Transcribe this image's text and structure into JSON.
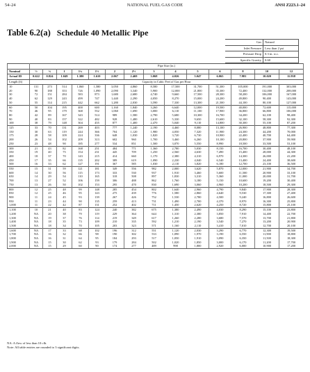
{
  "header": {
    "left": "54–24",
    "center": "NATIONAL FUEL GAS CODE",
    "right": "ANSI Z223.1–24"
  },
  "table": {
    "number": "Table 6.2(a)",
    "title": "Schedule 40 Metallic Pipe"
  },
  "conditions": [
    {
      "label": "Gas",
      "value": "Natural"
    },
    {
      "label": "Inlet Pressure",
      "value": "Less than 2 psi"
    },
    {
      "label": "Pressure Drop",
      "value": "0.3 in. w.c."
    },
    {
      "label": "Specific Gravity",
      "value": "0.60"
    }
  ],
  "pipe_size_label": "Pipe Size (in.)",
  "nominal_label": "Nominal",
  "nominal": [
    "½",
    "¾",
    "1",
    "1¼",
    "1½",
    "2",
    "2½",
    "3",
    "4",
    "5",
    "6",
    "8",
    "10",
    "12"
  ],
  "actual_id_label": "Actual ID",
  "actual_id": [
    "0.622",
    "0.824",
    "1.049",
    "1.380",
    "1.610",
    "2.067",
    "2.469",
    "3.068",
    "4.026",
    "5.047",
    "6.065",
    "7.981",
    "10.020",
    "11.938"
  ],
  "length_label": "Length (ft)",
  "capacity_label": "Capacity in Cubic Feet of Gas per Hour",
  "rows": [
    {
      "len": "10",
      "v": [
        "131",
        "273",
        "514",
        "1,060",
        "1,580",
        "3,050",
        "4,860",
        "8,580",
        "17,500",
        "31,700",
        "51,300",
        "105,000",
        "191,000",
        "303,000"
      ]
    },
    {
      "len": "20",
      "v": [
        "90",
        "188",
        "353",
        "726",
        "1,090",
        "2,090",
        "3,340",
        "5,900",
        "12,000",
        "21,800",
        "35,300",
        "72,400",
        "132,000",
        "208,000"
      ]
    },
    {
      "len": "30",
      "v": [
        "72",
        "151",
        "284",
        "583",
        "873",
        "1,680",
        "2,680",
        "4,740",
        "9,660",
        "17,500",
        "28,300",
        "58,200",
        "106,000",
        "167,000"
      ]
    },
    {
      "len": "40",
      "v": [
        "62",
        "129",
        "243",
        "499",
        "747",
        "1,440",
        "2,290",
        "4,050",
        "8,270",
        "15,000",
        "24,200",
        "49,800",
        "90,400",
        "143,000"
      ]
    },
    {
      "len": "50",
      "v": [
        "55",
        "114",
        "215",
        "442",
        "662",
        "1,280",
        "2,030",
        "3,590",
        "7,330",
        "13,300",
        "21,500",
        "44,100",
        "80,100",
        "127,000"
      ]
    },
    {
      "len": "60",
      "v": [
        "50",
        "104",
        "195",
        "400",
        "600",
        "1,160",
        "1,840",
        "3,260",
        "6,640",
        "12,000",
        "19,500",
        "40,000",
        "72,600",
        "115,000"
      ]
    },
    {
      "len": "70",
      "v": [
        "46",
        "95",
        "179",
        "368",
        "552",
        "1,060",
        "1,690",
        "3,000",
        "6,110",
        "11,100",
        "17,900",
        "36,800",
        "66,800",
        "106,000"
      ]
    },
    {
      "len": "80",
      "v": [
        "42",
        "89",
        "167",
        "343",
        "514",
        "989",
        "1,580",
        "2,790",
        "5,680",
        "10,300",
        "16,700",
        "34,200",
        "62,100",
        "98,400"
      ]
    },
    {
      "len": "90",
      "v": [
        "40",
        "83",
        "157",
        "322",
        "482",
        "928",
        "1,480",
        "2,610",
        "5,330",
        "9,650",
        "15,600",
        "32,100",
        "58,300",
        "92,300"
      ]
    },
    {
      "len": "100",
      "v": [
        "38",
        "79",
        "148",
        "304",
        "455",
        "877",
        "1,400",
        "2,470",
        "5,040",
        "9,110",
        "14,800",
        "30,300",
        "55,100",
        "87,200"
      ]
    },
    {
      "len": "125",
      "v": [
        "33",
        "70",
        "131",
        "269",
        "403",
        "777",
        "1,240",
        "2,190",
        "4,460",
        "8,080",
        "13,100",
        "26,900",
        "48,800",
        "77,300"
      ]
    },
    {
      "len": "150",
      "v": [
        "30",
        "63",
        "119",
        "244",
        "366",
        "704",
        "1,120",
        "1,980",
        "4,050",
        "7,320",
        "11,900",
        "24,300",
        "44,200",
        "70,000"
      ]
    },
    {
      "len": "175",
      "v": [
        "28",
        "58",
        "109",
        "224",
        "336",
        "648",
        "1,030",
        "1,820",
        "3,720",
        "6,730",
        "10,900",
        "22,400",
        "40,700",
        "64,400"
      ]
    },
    {
      "len": "200",
      "v": [
        "26",
        "54",
        "102",
        "209",
        "313",
        "602",
        "960",
        "1,700",
        "3,460",
        "6,260",
        "10,100",
        "20,800",
        "37,900",
        "59,900"
      ]
    },
    {
      "len": "250",
      "v": [
        "23",
        "48",
        "90",
        "185",
        "277",
        "534",
        "851",
        "1,500",
        "3,070",
        "5,550",
        "8,990",
        "18,500",
        "33,500",
        "53,100"
      ]
    },
    {
      "len": "300",
      "v": [
        "21",
        "43",
        "82",
        "168",
        "251",
        "484",
        "771",
        "1,360",
        "2,780",
        "5,030",
        "8,150",
        "16,700",
        "30,400",
        "48,100"
      ]
    },
    {
      "len": "350",
      "v": [
        "19",
        "40",
        "75",
        "154",
        "231",
        "445",
        "709",
        "1,250",
        "2,560",
        "4,630",
        "7,490",
        "15,400",
        "28,000",
        "44,300"
      ]
    },
    {
      "len": "400",
      "v": [
        "18",
        "37",
        "70",
        "143",
        "215",
        "414",
        "660",
        "1,170",
        "2,380",
        "4,310",
        "6,970",
        "14,300",
        "26,000",
        "41,200"
      ]
    },
    {
      "len": "450",
      "v": [
        "17",
        "35",
        "66",
        "135",
        "202",
        "389",
        "619",
        "1,090",
        "2,230",
        "4,040",
        "6,540",
        "13,400",
        "24,400",
        "38,600"
      ]
    },
    {
      "len": "500",
      "v": [
        "16",
        "33",
        "62",
        "127",
        "191",
        "367",
        "585",
        "1,030",
        "2,110",
        "3,820",
        "6,180",
        "12,700",
        "23,100",
        "36,500"
      ]
    },
    {
      "len": "550",
      "v": [
        "15",
        "31",
        "59",
        "121",
        "181",
        "349",
        "556",
        "982",
        "2,000",
        "3,620",
        "5,870",
        "12,000",
        "21,900",
        "34,700"
      ]
    },
    {
      "len": "600",
      "v": [
        "14",
        "30",
        "56",
        "115",
        "173",
        "333",
        "530",
        "937",
        "1,910",
        "3,460",
        "5,600",
        "11,500",
        "20,900",
        "33,100"
      ]
    },
    {
      "len": "650",
      "v": [
        "14",
        "29",
        "54",
        "110",
        "165",
        "318",
        "508",
        "897",
        "1,830",
        "3,310",
        "5,360",
        "11,000",
        "20,000",
        "31,700"
      ]
    },
    {
      "len": "700",
      "v": [
        "13",
        "27",
        "52",
        "106",
        "159",
        "306",
        "488",
        "862",
        "1,760",
        "3,180",
        "5,150",
        "10,600",
        "19,200",
        "30,400"
      ]
    },
    {
      "len": "750",
      "v": [
        "13",
        "26",
        "50",
        "102",
        "153",
        "295",
        "470",
        "830",
        "1,690",
        "3,060",
        "4,960",
        "10,200",
        "18,500",
        "29,300"
      ]
    },
    {
      "len": "800",
      "v": [
        "12",
        "25",
        "48",
        "99",
        "148",
        "285",
        "454",
        "802",
        "1,640",
        "2,960",
        "4,790",
        "9,840",
        "17,900",
        "28,300"
      ]
    },
    {
      "len": "850",
      "v": [
        "12",
        "25",
        "46",
        "95",
        "143",
        "275",
        "439",
        "776",
        "1,580",
        "2,860",
        "4,640",
        "9,530",
        "17,300",
        "27,400"
      ]
    },
    {
      "len": "900",
      "v": [
        "11",
        "24",
        "45",
        "93",
        "139",
        "267",
        "426",
        "752",
        "1,530",
        "2,780",
        "4,500",
        "9,240",
        "16,800",
        "26,600"
      ]
    },
    {
      "len": "950",
      "v": [
        "11",
        "23",
        "44",
        "90",
        "135",
        "259",
        "413",
        "731",
        "1,490",
        "2,700",
        "4,370",
        "8,970",
        "16,300",
        "25,800"
      ]
    },
    {
      "len": "1,000",
      "v": [
        "11",
        "22",
        "42",
        "87",
        "131",
        "252",
        "402",
        "711",
        "1,450",
        "2,620",
        "4,250",
        "8,720",
        "15,800",
        "25,100"
      ]
    },
    {
      "len": "1,100",
      "v": [
        "10",
        "21",
        "40",
        "83",
        "124",
        "240",
        "382",
        "675",
        "1,380",
        "2,490",
        "4,030",
        "8,290",
        "15,100",
        "23,800"
      ]
    },
    {
      "len": "1,200",
      "v": [
        "NA",
        "20",
        "38",
        "79",
        "119",
        "229",
        "364",
        "644",
        "1,310",
        "2,380",
        "3,850",
        "7,910",
        "14,400",
        "22,700"
      ]
    },
    {
      "len": "1,300",
      "v": [
        "NA",
        "19",
        "37",
        "76",
        "114",
        "219",
        "349",
        "617",
        "1,260",
        "2,280",
        "3,680",
        "7,570",
        "13,700",
        "21,800"
      ]
    },
    {
      "len": "1,400",
      "v": [
        "NA",
        "18",
        "35",
        "73",
        "109",
        "210",
        "335",
        "592",
        "1,210",
        "2,190",
        "3,540",
        "7,270",
        "13,200",
        "20,900"
      ]
    },
    {
      "len": "1,500",
      "v": [
        "NA",
        "18",
        "34",
        "70",
        "105",
        "203",
        "323",
        "571",
        "1,160",
        "2,110",
        "3,410",
        "7,010",
        "12,700",
        "20,100"
      ]
    },
    {
      "len": "1,600",
      "v": [
        "NA",
        "17",
        "33",
        "68",
        "102",
        "196",
        "312",
        "551",
        "1,120",
        "2,030",
        "3,290",
        "6,770",
        "12,300",
        "19,500"
      ]
    },
    {
      "len": "1,700",
      "v": [
        "NA",
        "16",
        "32",
        "66",
        "98",
        "190",
        "302",
        "533",
        "1,090",
        "1,970",
        "3,190",
        "6,550",
        "11,900",
        "18,800"
      ]
    },
    {
      "len": "1,800",
      "v": [
        "NA",
        "16",
        "31",
        "64",
        "95",
        "184",
        "293",
        "517",
        "1,050",
        "1,910",
        "3,090",
        "6,350",
        "11,500",
        "18,300"
      ]
    },
    {
      "len": "1,900",
      "v": [
        "NA",
        "15",
        "30",
        "62",
        "93",
        "179",
        "284",
        "502",
        "1,020",
        "1,850",
        "3,000",
        "6,170",
        "11,200",
        "17,700"
      ]
    },
    {
      "len": "2,000",
      "v": [
        "NA",
        "15",
        "29",
        "60",
        "90",
        "174",
        "277",
        "489",
        "998",
        "1,800",
        "2,920",
        "6,000",
        "10,900",
        "17,200"
      ]
    }
  ],
  "notes": [
    "NA: A flow of less than 10 cfh.",
    "Note: All table entries are rounded to 3 significant digits."
  ]
}
